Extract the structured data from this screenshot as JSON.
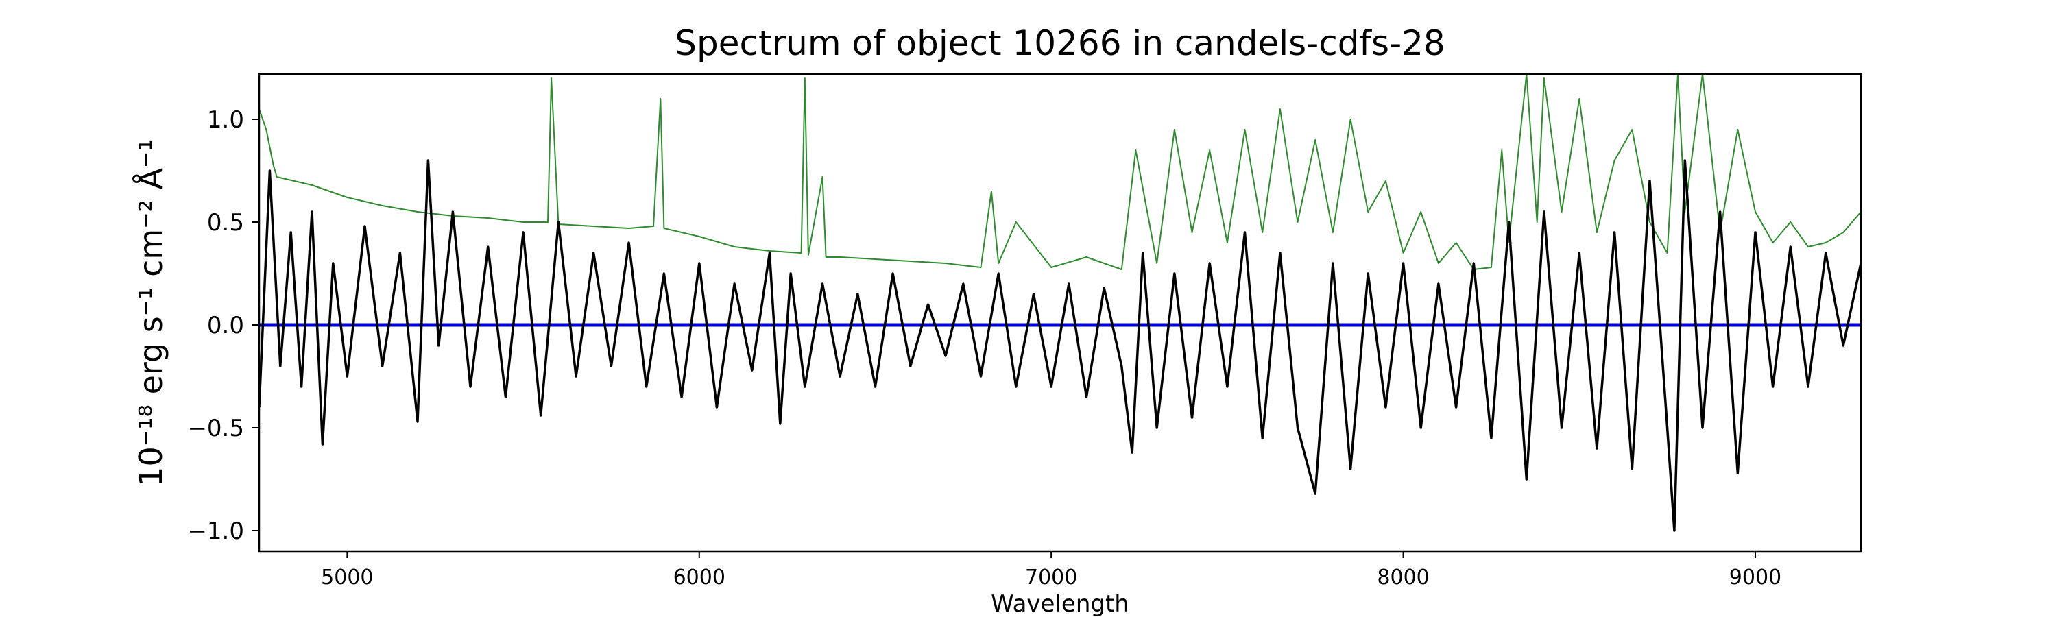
{
  "chart_data": {
    "type": "line",
    "title": "Spectrum of object 10266 in candels-cdfs-28",
    "xlabel": "Wavelength",
    "ylabel": "10⁻¹⁸ erg s⁻¹ cm⁻² Å⁻¹",
    "xlim": [
      4750,
      9300
    ],
    "ylim": [
      -1.1,
      1.22
    ],
    "x_ticks": [
      5000,
      6000,
      7000,
      8000,
      9000
    ],
    "y_ticks": [
      1.0,
      0.5,
      0.0,
      -0.5,
      -1.0
    ],
    "y_tick_labels": [
      "1.0",
      "0.5",
      "0.0",
      "−0.5",
      "−1.0"
    ],
    "grid": false,
    "colors": {
      "flux": "#000000",
      "error": "#2e8b2e",
      "zero": "#0000cc"
    },
    "series": [
      {
        "role": "flux",
        "x": [
          4750,
          4780,
          4810,
          4840,
          4870,
          4900,
          4930,
          4960,
          5000,
          5050,
          5100,
          5150,
          5200,
          5230,
          5260,
          5300,
          5350,
          5400,
          5450,
          5500,
          5550,
          5600,
          5650,
          5700,
          5750,
          5800,
          5850,
          5900,
          5950,
          6000,
          6050,
          6100,
          6150,
          6200,
          6230,
          6260,
          6300,
          6350,
          6400,
          6450,
          6500,
          6550,
          6600,
          6650,
          6700,
          6750,
          6800,
          6850,
          6900,
          6950,
          7000,
          7050,
          7100,
          7150,
          7200,
          7230,
          7260,
          7300,
          7350,
          7400,
          7450,
          7500,
          7550,
          7600,
          7650,
          7700,
          7750,
          7800,
          7850,
          7900,
          7950,
          8000,
          8050,
          8100,
          8150,
          8200,
          8250,
          8300,
          8350,
          8400,
          8450,
          8500,
          8550,
          8600,
          8650,
          8700,
          8750,
          8770,
          8800,
          8850,
          8900,
          8950,
          9000,
          9050,
          9100,
          9150,
          9200,
          9250,
          9300
        ],
        "y": [
          -0.4,
          0.75,
          -0.2,
          0.45,
          -0.3,
          0.55,
          -0.58,
          0.3,
          -0.25,
          0.48,
          -0.2,
          0.35,
          -0.47,
          0.8,
          -0.1,
          0.55,
          -0.3,
          0.38,
          -0.35,
          0.45,
          -0.44,
          0.5,
          -0.25,
          0.35,
          -0.2,
          0.4,
          -0.3,
          0.25,
          -0.35,
          0.3,
          -0.4,
          0.2,
          -0.22,
          0.35,
          -0.48,
          0.25,
          -0.3,
          0.2,
          -0.25,
          0.15,
          -0.3,
          0.25,
          -0.2,
          0.1,
          -0.15,
          0.2,
          -0.25,
          0.25,
          -0.3,
          0.15,
          -0.3,
          0.2,
          -0.35,
          0.18,
          -0.2,
          -0.62,
          0.35,
          -0.5,
          0.25,
          -0.45,
          0.3,
          -0.3,
          0.45,
          -0.55,
          0.35,
          -0.5,
          -0.82,
          0.3,
          -0.7,
          0.25,
          -0.4,
          0.3,
          -0.5,
          0.2,
          -0.4,
          0.3,
          -0.55,
          0.5,
          -0.75,
          0.55,
          -0.5,
          0.35,
          -0.6,
          0.45,
          -0.7,
          0.7,
          -0.5,
          -1.0,
          0.8,
          -0.5,
          0.55,
          -0.72,
          0.45,
          -0.3,
          0.38,
          -0.3,
          0.35,
          -0.1,
          0.3
        ]
      },
      {
        "role": "error",
        "x": [
          4750,
          4770,
          4790,
          4800,
          4900,
          5000,
          5100,
          5200,
          5300,
          5400,
          5500,
          5570,
          5580,
          5600,
          5700,
          5800,
          5870,
          5890,
          5900,
          6000,
          6100,
          6200,
          6290,
          6300,
          6310,
          6350,
          6360,
          6400,
          6500,
          6600,
          6700,
          6800,
          6830,
          6850,
          6900,
          7000,
          7100,
          7200,
          7240,
          7300,
          7350,
          7400,
          7450,
          7500,
          7550,
          7600,
          7650,
          7700,
          7750,
          7800,
          7850,
          7900,
          7950,
          8000,
          8050,
          8100,
          8150,
          8200,
          8250,
          8280,
          8300,
          8350,
          8380,
          8400,
          8450,
          8500,
          8550,
          8600,
          8650,
          8700,
          8750,
          8780,
          8800,
          8850,
          8900,
          8950,
          9000,
          9050,
          9100,
          9150,
          9200,
          9250,
          9300
        ],
        "y": [
          1.05,
          0.95,
          0.78,
          0.72,
          0.68,
          0.62,
          0.58,
          0.55,
          0.53,
          0.52,
          0.5,
          0.5,
          1.2,
          0.49,
          0.48,
          0.47,
          0.48,
          1.1,
          0.47,
          0.43,
          0.38,
          0.36,
          0.35,
          1.2,
          0.34,
          0.72,
          0.33,
          0.33,
          0.32,
          0.31,
          0.3,
          0.28,
          0.65,
          0.3,
          0.5,
          0.28,
          0.33,
          0.27,
          0.85,
          0.3,
          0.95,
          0.45,
          0.85,
          0.4,
          0.95,
          0.45,
          1.05,
          0.5,
          0.9,
          0.45,
          1.0,
          0.55,
          0.7,
          0.35,
          0.55,
          0.3,
          0.4,
          0.27,
          0.28,
          0.85,
          0.4,
          1.22,
          0.5,
          1.2,
          0.55,
          1.1,
          0.45,
          0.8,
          0.95,
          0.5,
          0.35,
          1.22,
          0.55,
          1.22,
          0.45,
          0.95,
          0.55,
          0.4,
          0.5,
          0.38,
          0.4,
          0.45,
          0.55
        ]
      },
      {
        "role": "zero",
        "x": [
          4750,
          9300
        ],
        "y": [
          0.0,
          0.0
        ]
      }
    ]
  }
}
